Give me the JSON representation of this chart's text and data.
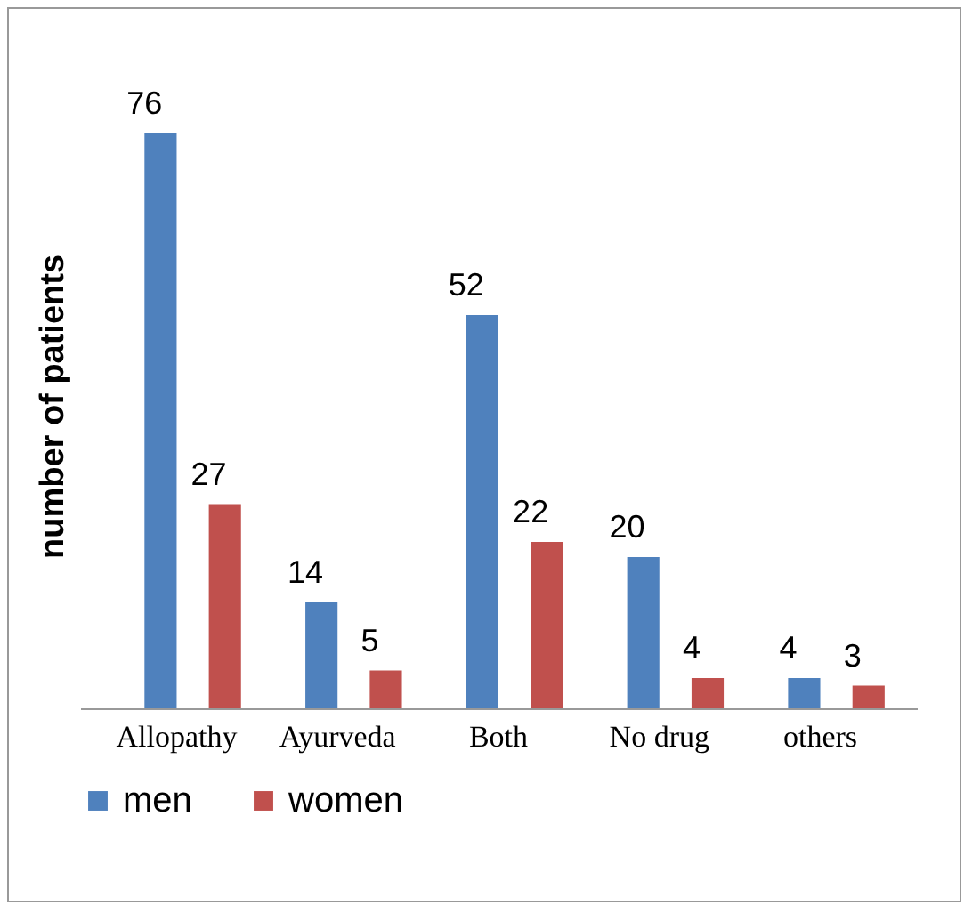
{
  "chart_data": {
    "type": "bar",
    "ylabel": "number of patients",
    "categories": [
      "Allopathy",
      "Ayurveda",
      "Both",
      "No drug",
      "others"
    ],
    "series": [
      {
        "name": "men",
        "color": "#4f81bd",
        "values": [
          76,
          14,
          52,
          20,
          4
        ]
      },
      {
        "name": "women",
        "color": "#c0504d",
        "values": [
          27,
          5,
          22,
          4,
          3
        ]
      }
    ],
    "data_labels": true,
    "legend": "bottom",
    "grid": false
  }
}
